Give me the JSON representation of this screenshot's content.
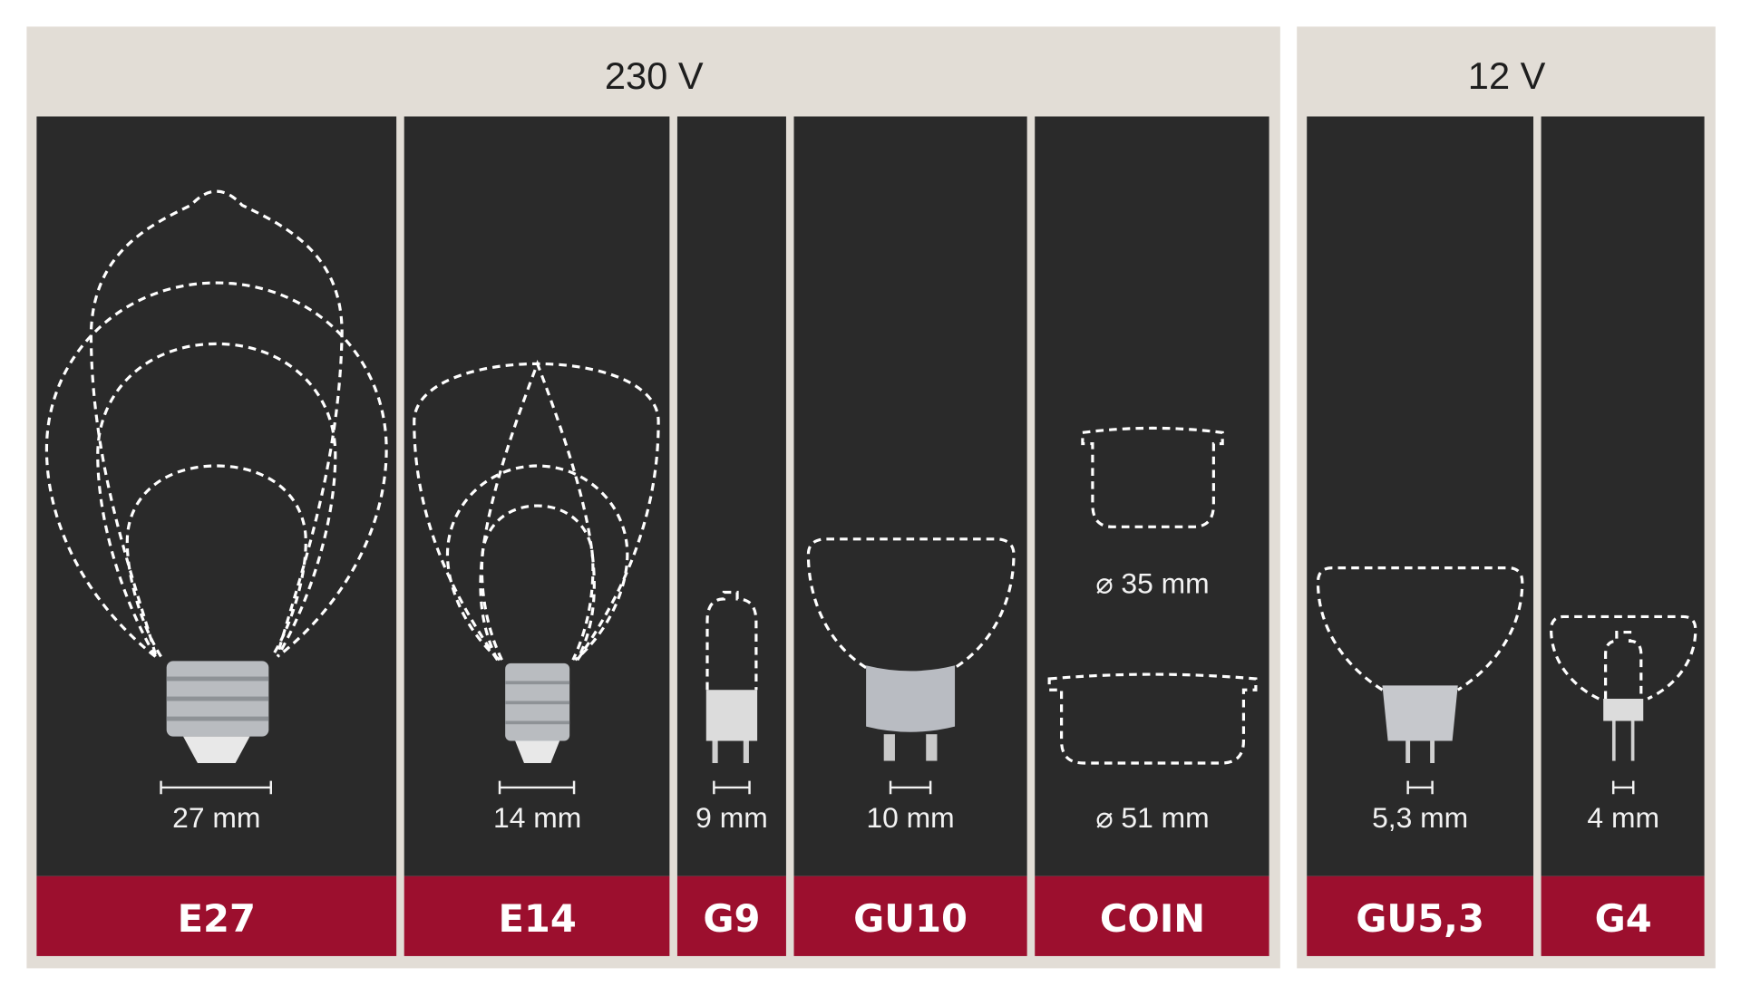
{
  "groups": [
    {
      "voltage": "230 V"
    },
    {
      "voltage": "12 V"
    }
  ],
  "sockets": [
    {
      "name": "E27",
      "measure": "27 mm"
    },
    {
      "name": "E14",
      "measure": "14 mm"
    },
    {
      "name": "G9",
      "measure": "9 mm"
    },
    {
      "name": "GU10",
      "measure": "10 mm"
    },
    {
      "name": "COIN",
      "measure_small": "⌀ 35 mm",
      "measure_large": "⌀ 51 mm"
    },
    {
      "name": "GU5,3",
      "measure": "5,3 mm"
    },
    {
      "name": "G4",
      "measure": "4 mm"
    }
  ],
  "colors": {
    "background": "#e2ddd6",
    "panel": "#2a2a2a",
    "label_bar": "#9c0f2e",
    "outline": "#ffffff"
  }
}
